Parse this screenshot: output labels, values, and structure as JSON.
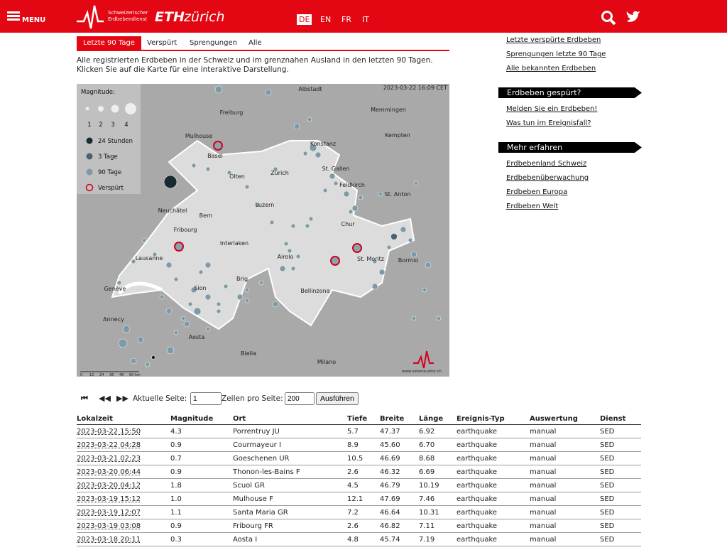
{
  "header": {
    "menu": "MENU",
    "logo_line1": "Schweizerischer",
    "logo_line2": "Erdbebendienst",
    "eth": "ETH",
    "zurich": "zürich",
    "languages": [
      "DE",
      "EN",
      "FR",
      "IT"
    ]
  },
  "tabs": [
    "Letzte 90 Tage",
    "Verspürt",
    "Sprengungen",
    "Alle"
  ],
  "description": "Alle registrierten Erdbeben in der Schweiz und im grenznahen Ausland in den letzten 90 Tagen. Klicken Sie auf die Karte für eine interaktive Darstellung.",
  "map": {
    "timestamp": "2023-03-22 16:09 CET",
    "credit": "www.seismo.ethz.ch",
    "legend": {
      "title": "Magnitude:",
      "sizes": [
        "1",
        "2",
        "3",
        "4"
      ],
      "items": [
        "24 Stunden",
        "3 Tage",
        "90 Tage",
        "Verspürt"
      ]
    },
    "scale": [
      "0",
      "12",
      "24",
      "36",
      "48",
      "60 km"
    ],
    "places": [
      "Albstadt",
      "Freiburg",
      "Memmingen",
      "Mulhouse",
      "Konstanz",
      "Kempten",
      "Basel",
      "St. Gallen",
      "Olten",
      "Zürich",
      "Feldkirch",
      "St. Anton",
      "Luzern",
      "Neuchâtel",
      "Bern",
      "Chur",
      "Fribourg",
      "Interlaken",
      "Lausanne",
      "Airolo",
      "St. Moritz",
      "Bormio",
      "Brig",
      "Genève",
      "Sion",
      "Bellinzona",
      "Annecy",
      "Aosta",
      "Biella",
      "Milano"
    ]
  },
  "pagination": {
    "page_label": "Aktuelle Seite:",
    "page": 1,
    "rows_label": "Zeilen pro Seite:",
    "rows": 200,
    "button": "Ausführen"
  },
  "table": {
    "columns": [
      "Lokalzeit",
      "Magnitude",
      "Ort",
      "Tiefe",
      "Breite",
      "Länge",
      "Ereignis-Typ",
      "Auswertung",
      "Dienst"
    ],
    "rows": [
      [
        "2023-03-22 15:50",
        "4.3",
        "Porrentruy JU",
        "5.7",
        "47.37",
        "6.92",
        "earthquake",
        "manual",
        "SED"
      ],
      [
        "2023-03-22 04:28",
        "0.9",
        "Courmayeur I",
        "8.9",
        "45.60",
        "6.70",
        "earthquake",
        "manual",
        "SED"
      ],
      [
        "2023-03-21 02:23",
        "0.7",
        "Goeschenen UR",
        "10.5",
        "46.69",
        "8.68",
        "earthquake",
        "manual",
        "SED"
      ],
      [
        "2023-03-20 06:44",
        "0.9",
        "Thonon-les-Bains F",
        "2.6",
        "46.32",
        "6.69",
        "earthquake",
        "manual",
        "SED"
      ],
      [
        "2023-03-20 04:12",
        "1.8",
        "Scuol GR",
        "4.5",
        "46.79",
        "10.19",
        "earthquake",
        "manual",
        "SED"
      ],
      [
        "2023-03-19 15:12",
        "1.0",
        "Mulhouse F",
        "12.1",
        "47.69",
        "7.46",
        "earthquake",
        "manual",
        "SED"
      ],
      [
        "2023-03-19 12:07",
        "1.1",
        "Santa Maria GR",
        "7.2",
        "46.64",
        "10.31",
        "earthquake",
        "manual",
        "SED"
      ],
      [
        "2023-03-19 03:08",
        "0.9",
        "Fribourg FR",
        "2.6",
        "46.82",
        "7.11",
        "earthquake",
        "manual",
        "SED"
      ],
      [
        "2023-03-18 20:11",
        "0.3",
        "Aosta I",
        "4.8",
        "45.74",
        "7.19",
        "earthquake",
        "manual",
        "SED"
      ]
    ]
  },
  "sidebar": {
    "links_top": [
      "Letzte verspürte Erdbeben",
      "Sprengungen letzte 90 Tage",
      "Alle bekannten Erdbeben"
    ],
    "section1": {
      "title": "Erdbeben gespürt?",
      "links": [
        "Melden Sie ein Erdbeben!",
        "Was tun im Ereignisfall?"
      ]
    },
    "section2": {
      "title": "Mehr erfahren",
      "links": [
        "Erdbebenland Schweiz",
        "Erdbebenüberwachung",
        "Erdbeben Europa",
        "Erdbeben Welt"
      ]
    }
  }
}
